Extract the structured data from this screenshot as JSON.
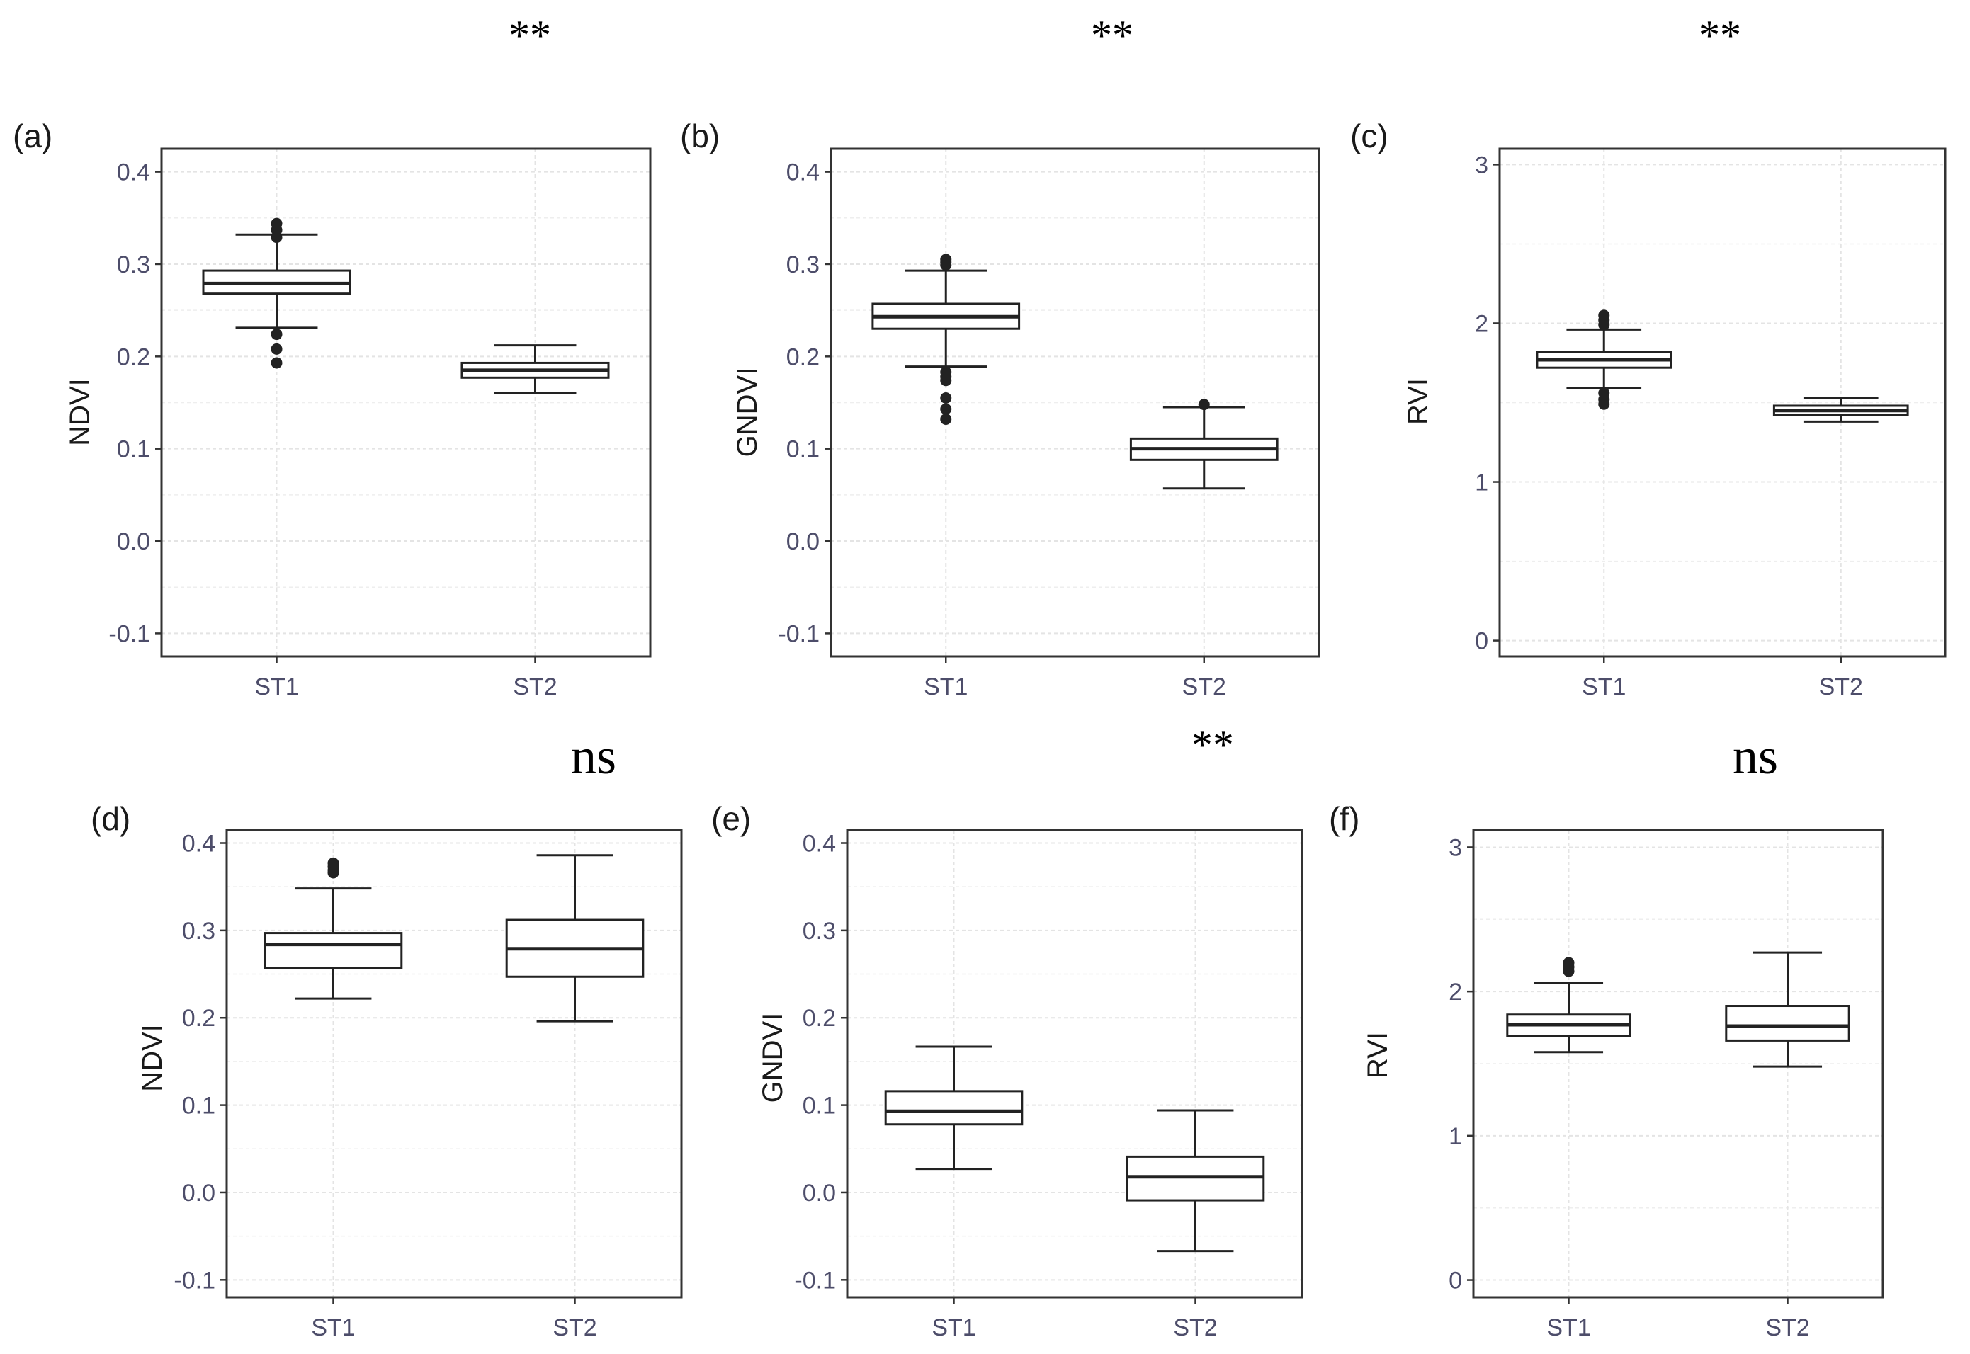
{
  "chart_data": [
    {
      "panel": "(a)",
      "type": "box",
      "ylabel": "NDVI",
      "significance": "**",
      "categories": [
        "ST1",
        "ST2"
      ],
      "ylim": [
        -0.125,
        0.425
      ],
      "yticks": [
        -0.1,
        0.0,
        0.1,
        0.2,
        0.3,
        0.4
      ],
      "ytick_labels": [
        "-0.1",
        "0.0",
        "0.1",
        "0.2",
        "0.3",
        "0.4"
      ],
      "boxes": [
        {
          "category": "ST1",
          "lower_whisker": 0.231,
          "q1": 0.268,
          "median": 0.279,
          "q3": 0.293,
          "upper_whisker": 0.332,
          "outliers": [
            0.344,
            0.337,
            0.329,
            0.224,
            0.208,
            0.193
          ]
        },
        {
          "category": "ST2",
          "lower_whisker": 0.16,
          "q1": 0.177,
          "median": 0.185,
          "q3": 0.193,
          "upper_whisker": 0.212,
          "outliers": []
        }
      ]
    },
    {
      "panel": "(b)",
      "type": "box",
      "ylabel": "GNDVI",
      "significance": "**",
      "categories": [
        "ST1",
        "ST2"
      ],
      "ylim": [
        -0.125,
        0.425
      ],
      "yticks": [
        -0.1,
        0.0,
        0.1,
        0.2,
        0.3,
        0.4
      ],
      "ytick_labels": [
        "-0.1",
        "0.0",
        "0.1",
        "0.2",
        "0.3",
        "0.4"
      ],
      "boxes": [
        {
          "category": "ST1",
          "lower_whisker": 0.189,
          "q1": 0.23,
          "median": 0.243,
          "q3": 0.257,
          "upper_whisker": 0.293,
          "outliers": [
            0.305,
            0.302,
            0.299,
            0.183,
            0.178,
            0.174,
            0.155,
            0.143,
            0.132
          ]
        },
        {
          "category": "ST2",
          "lower_whisker": 0.057,
          "q1": 0.088,
          "median": 0.1,
          "q3": 0.111,
          "upper_whisker": 0.145,
          "outliers": [
            0.148
          ]
        }
      ]
    },
    {
      "panel": "(c)",
      "type": "box",
      "ylabel": "RVI",
      "significance": "**",
      "categories": [
        "ST1",
        "ST2"
      ],
      "ylim": [
        -0.1,
        3.1
      ],
      "yticks": [
        0,
        1,
        2,
        3
      ],
      "ytick_labels": [
        "0",
        "1",
        "2",
        "3"
      ],
      "boxes": [
        {
          "category": "ST1",
          "lower_whisker": 1.59,
          "q1": 1.72,
          "median": 1.77,
          "q3": 1.82,
          "upper_whisker": 1.96,
          "outliers": [
            2.05,
            2.02,
            1.99,
            1.56,
            1.52,
            1.49
          ]
        },
        {
          "category": "ST2",
          "lower_whisker": 1.38,
          "q1": 1.42,
          "median": 1.45,
          "q3": 1.48,
          "upper_whisker": 1.53,
          "outliers": []
        }
      ]
    },
    {
      "panel": "(d)",
      "type": "box",
      "ylabel": "NDVI",
      "significance": "ns",
      "categories": [
        "ST1",
        "ST2"
      ],
      "ylim": [
        -0.12,
        0.415
      ],
      "yticks": [
        -0.1,
        0.0,
        0.1,
        0.2,
        0.3,
        0.4
      ],
      "ytick_labels": [
        "-0.1",
        "0.0",
        "0.1",
        "0.2",
        "0.3",
        "0.4"
      ],
      "boxes": [
        {
          "category": "ST1",
          "lower_whisker": 0.222,
          "q1": 0.257,
          "median": 0.284,
          "q3": 0.297,
          "upper_whisker": 0.348,
          "outliers": [
            0.377,
            0.373,
            0.369,
            0.366
          ]
        },
        {
          "category": "ST2",
          "lower_whisker": 0.196,
          "q1": 0.247,
          "median": 0.279,
          "q3": 0.312,
          "upper_whisker": 0.386,
          "outliers": []
        }
      ]
    },
    {
      "panel": "(e)",
      "type": "box",
      "ylabel": "GNDVI",
      "significance": "**",
      "categories": [
        "ST1",
        "ST2"
      ],
      "ylim": [
        -0.12,
        0.415
      ],
      "yticks": [
        -0.1,
        0.0,
        0.1,
        0.2,
        0.3,
        0.4
      ],
      "ytick_labels": [
        "-0.1",
        "0.0",
        "0.1",
        "0.2",
        "0.3",
        "0.4"
      ],
      "boxes": [
        {
          "category": "ST1",
          "lower_whisker": 0.027,
          "q1": 0.078,
          "median": 0.093,
          "q3": 0.116,
          "upper_whisker": 0.167,
          "outliers": []
        },
        {
          "category": "ST2",
          "lower_whisker": -0.067,
          "q1": -0.009,
          "median": 0.018,
          "q3": 0.041,
          "upper_whisker": 0.094,
          "outliers": []
        }
      ]
    },
    {
      "panel": "(f)",
      "type": "box",
      "ylabel": "RVI",
      "significance": "ns",
      "categories": [
        "ST1",
        "ST2"
      ],
      "ylim": [
        -0.12,
        3.12
      ],
      "yticks": [
        0,
        1,
        2,
        3
      ],
      "ytick_labels": [
        "0",
        "1",
        "2",
        "3"
      ],
      "boxes": [
        {
          "category": "ST1",
          "lower_whisker": 1.58,
          "q1": 1.69,
          "median": 1.77,
          "q3": 1.84,
          "upper_whisker": 2.06,
          "outliers": [
            2.2,
            2.17,
            2.14
          ]
        },
        {
          "category": "ST2",
          "lower_whisker": 1.48,
          "q1": 1.66,
          "median": 1.76,
          "q3": 1.9,
          "upper_whisker": 2.27,
          "outliers": []
        }
      ]
    }
  ]
}
